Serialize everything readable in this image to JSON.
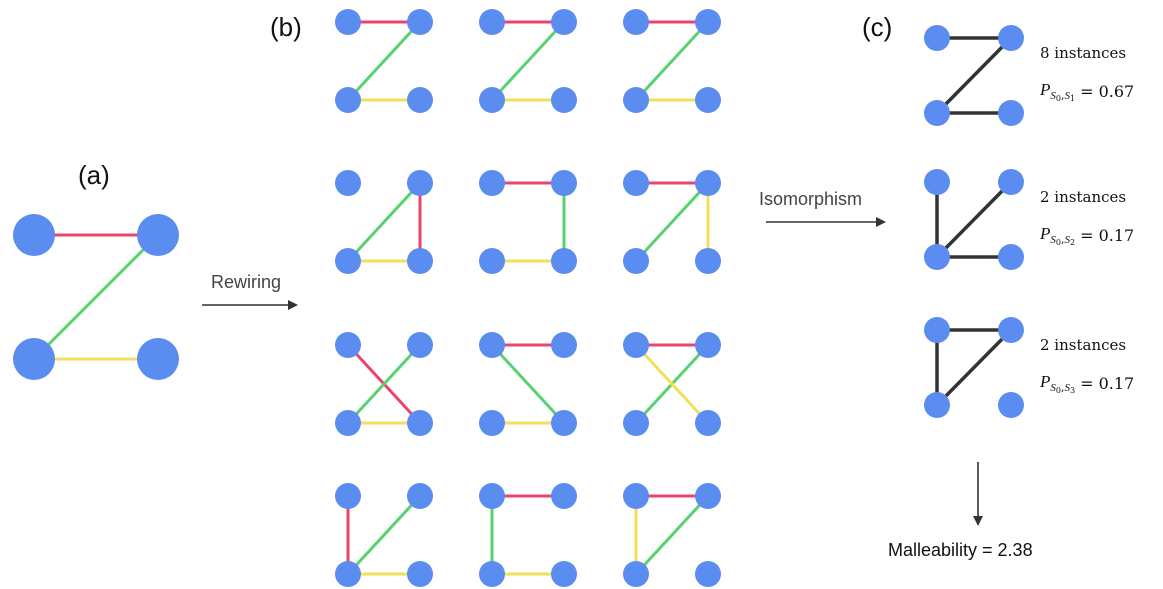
{
  "colors": {
    "node": "#5b8cf0",
    "red": "#e8466a",
    "green": "#58d26f",
    "yellow": "#f2df5a",
    "black": "#333333",
    "arrow": "#333333"
  },
  "panels": {
    "a": {
      "label": "(a)"
    },
    "b": {
      "label": "(b)"
    },
    "c": {
      "label": "(c)"
    }
  },
  "arrows": {
    "rewiring": "Rewiring",
    "isomorphism": "Isomorphism"
  },
  "original_graph": {
    "edges": [
      {
        "from": "top-left",
        "to": "top-right",
        "color": "red"
      },
      {
        "from": "bottom-left",
        "to": "top-right",
        "color": "green"
      },
      {
        "from": "bottom-left",
        "to": "bottom-right",
        "color": "yellow"
      }
    ]
  },
  "rewired_graphs": [
    {
      "edges": [
        [
          "tl",
          "tr",
          "red"
        ],
        [
          "bl",
          "tr",
          "green"
        ],
        [
          "bl",
          "br",
          "yellow"
        ]
      ]
    },
    {
      "edges": [
        [
          "tl",
          "tr",
          "red"
        ],
        [
          "bl",
          "tr",
          "green"
        ],
        [
          "bl",
          "br",
          "yellow"
        ]
      ]
    },
    {
      "edges": [
        [
          "tl",
          "tr",
          "red"
        ],
        [
          "bl",
          "tr",
          "green"
        ],
        [
          "bl",
          "br",
          "yellow"
        ]
      ]
    },
    {
      "edges": [
        [
          "tr",
          "br",
          "red"
        ],
        [
          "bl",
          "tr",
          "green"
        ],
        [
          "bl",
          "br",
          "yellow"
        ]
      ]
    },
    {
      "edges": [
        [
          "tl",
          "tr",
          "red"
        ],
        [
          "tr",
          "br",
          "green"
        ],
        [
          "bl",
          "br",
          "yellow"
        ]
      ]
    },
    {
      "edges": [
        [
          "tl",
          "tr",
          "red"
        ],
        [
          "bl",
          "tr",
          "green"
        ],
        [
          "tr",
          "br",
          "yellow"
        ]
      ]
    },
    {
      "edges": [
        [
          "tl",
          "br",
          "red"
        ],
        [
          "bl",
          "tr",
          "green"
        ],
        [
          "bl",
          "br",
          "yellow"
        ]
      ]
    },
    {
      "edges": [
        [
          "tl",
          "tr",
          "red"
        ],
        [
          "tl",
          "br",
          "green"
        ],
        [
          "bl",
          "br",
          "yellow"
        ]
      ]
    },
    {
      "edges": [
        [
          "tl",
          "tr",
          "red"
        ],
        [
          "bl",
          "tr",
          "green"
        ],
        [
          "tl",
          "br",
          "yellow"
        ]
      ]
    },
    {
      "edges": [
        [
          "tl",
          "bl",
          "red"
        ],
        [
          "bl",
          "tr",
          "green"
        ],
        [
          "bl",
          "br",
          "yellow"
        ]
      ]
    },
    {
      "edges": [
        [
          "tl",
          "tr",
          "red"
        ],
        [
          "tl",
          "bl",
          "green"
        ],
        [
          "bl",
          "br",
          "yellow"
        ]
      ]
    },
    {
      "edges": [
        [
          "tl",
          "tr",
          "red"
        ],
        [
          "bl",
          "tr",
          "green"
        ],
        [
          "tl",
          "bl",
          "yellow"
        ]
      ]
    }
  ],
  "isomorphism_classes": [
    {
      "edges": [
        [
          "tl",
          "tr"
        ],
        [
          "bl",
          "tr"
        ],
        [
          "bl",
          "br"
        ]
      ],
      "count_text": "8 instances",
      "prob_base": "P",
      "prob_sub": "S",
      "prob_sub0": "0",
      "prob_sub_n": "1",
      "prob_value": "= 0.67"
    },
    {
      "edges": [
        [
          "tl",
          "bl"
        ],
        [
          "bl",
          "tr"
        ],
        [
          "bl",
          "br"
        ]
      ],
      "count_text": "2 instances",
      "prob_base": "P",
      "prob_sub": "S",
      "prob_sub0": "0",
      "prob_sub_n": "2",
      "prob_value": "= 0.17"
    },
    {
      "edges": [
        [
          "tl",
          "tr"
        ],
        [
          "tl",
          "bl"
        ],
        [
          "bl",
          "tr"
        ]
      ],
      "count_text": "2 instances",
      "prob_base": "P",
      "prob_sub": "S",
      "prob_sub0": "0",
      "prob_sub_n": "3",
      "prob_value": "= 0.17"
    }
  ],
  "result": {
    "text": "Malleability = 2.38"
  }
}
